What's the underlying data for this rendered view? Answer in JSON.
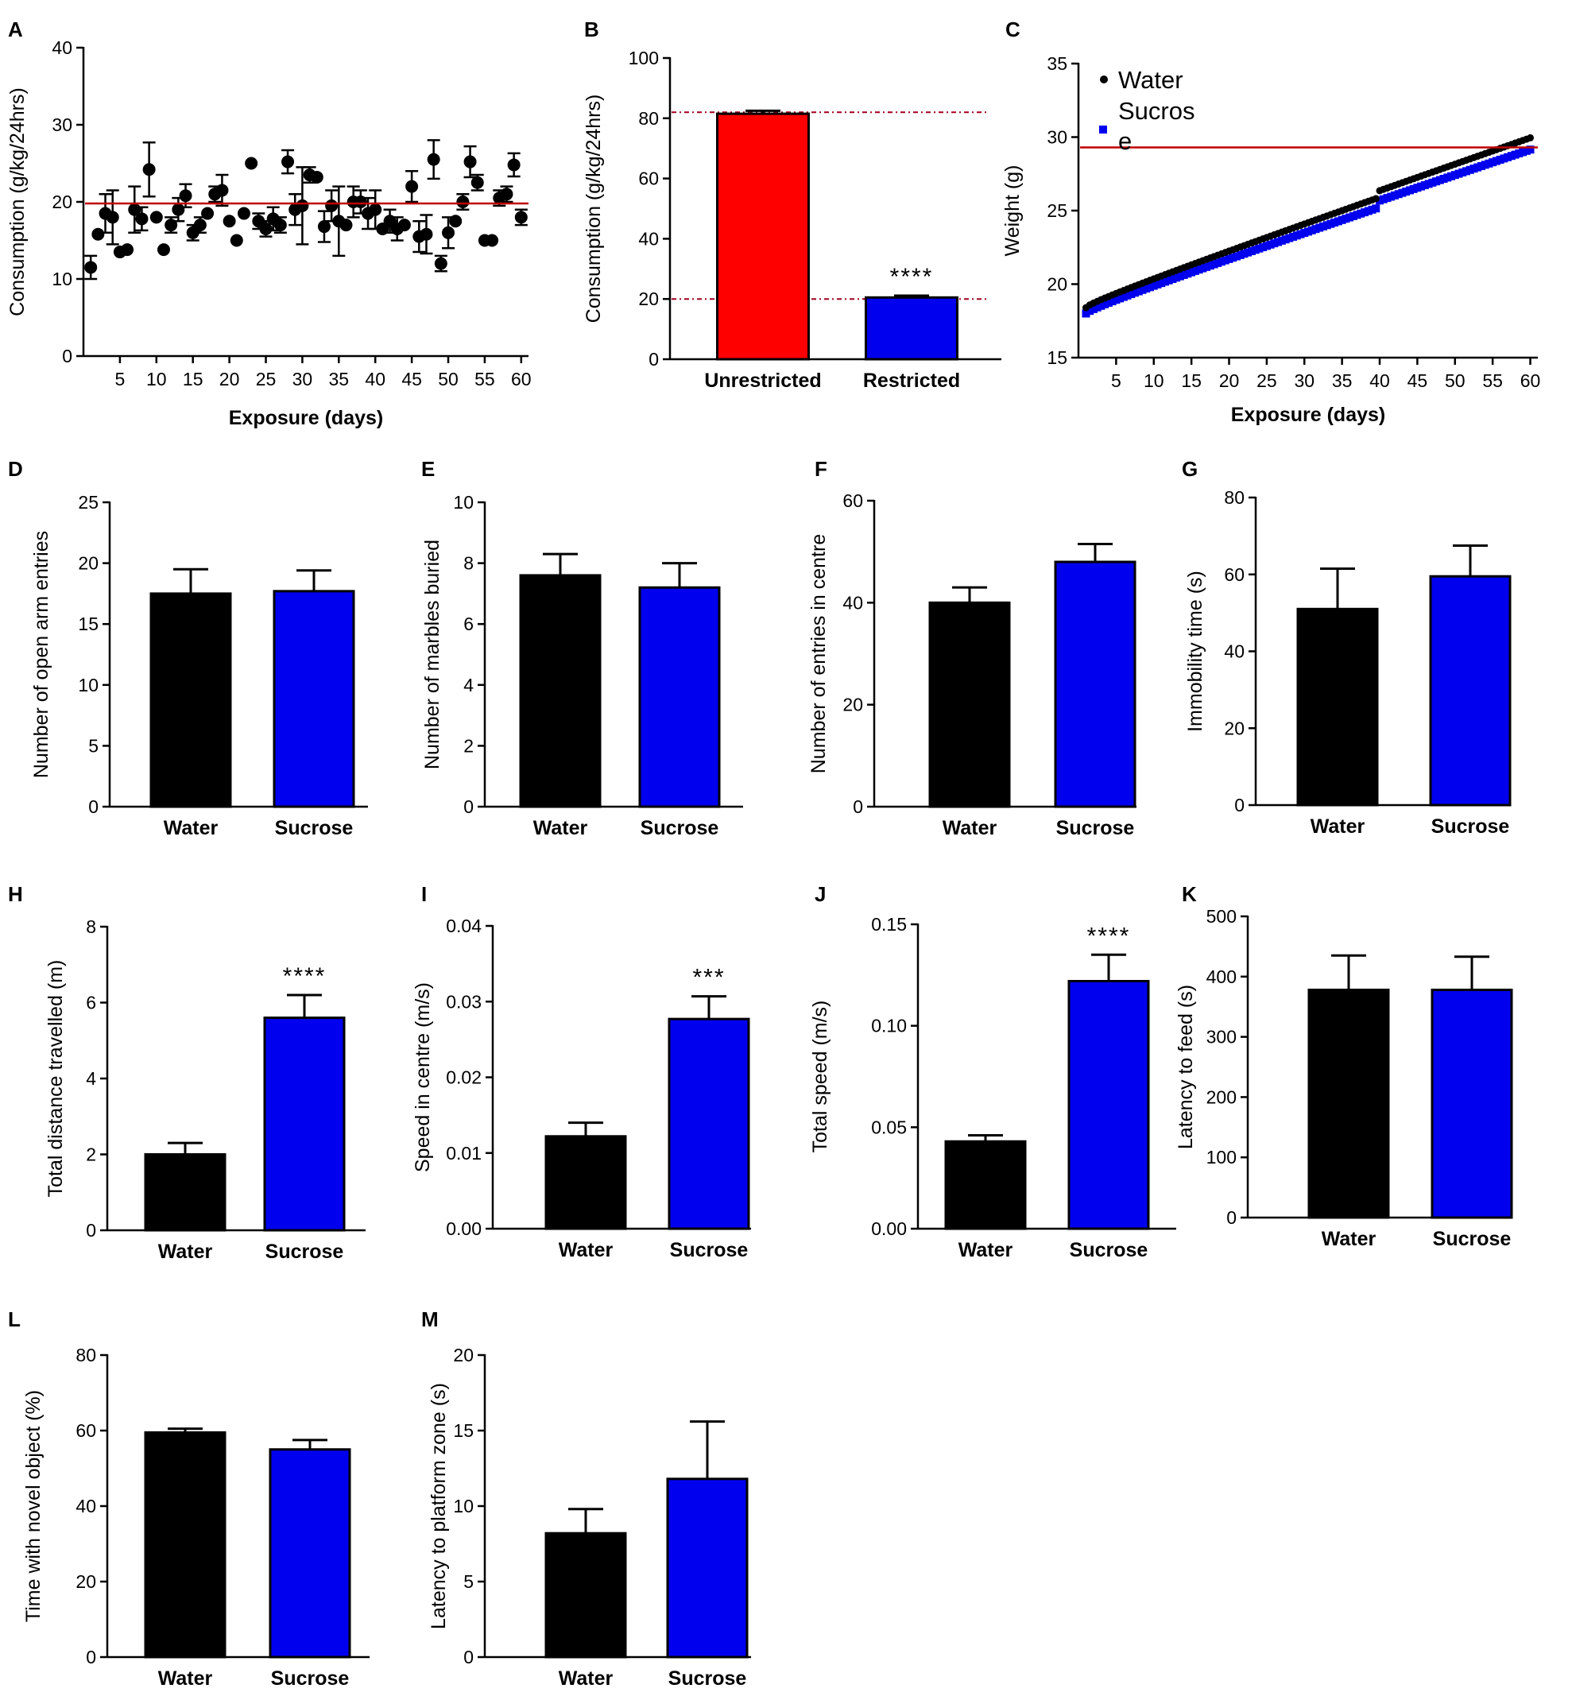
{
  "colors": {
    "water": "#000000",
    "sucrose": "#0000ee",
    "unrestricted": "#ff0000",
    "reference_line": "#c00000",
    "dash_line": "#a00020",
    "axis": "#000000"
  },
  "chart_data": [
    {
      "id": "A",
      "letter": "A",
      "type": "scatter",
      "xlabel": "Exposure (days)",
      "ylabel": "Consumption (g/kg/24hrs)",
      "xlim": [
        0,
        61
      ],
      "ylim": [
        0,
        40
      ],
      "xticks": [
        5,
        10,
        15,
        20,
        25,
        30,
        35,
        40,
        45,
        50,
        55,
        60
      ],
      "yticks": [
        0,
        10,
        20,
        30,
        40
      ],
      "reference_line": 19.8,
      "x": [
        1,
        2,
        3,
        4,
        5,
        6,
        7,
        8,
        9,
        10,
        11,
        12,
        13,
        14,
        15,
        16,
        17,
        18,
        19,
        20,
        21,
        22,
        23,
        24,
        25,
        26,
        27,
        28,
        29,
        30,
        31,
        32,
        33,
        34,
        35,
        36,
        37,
        38,
        39,
        40,
        41,
        42,
        43,
        44,
        45,
        46,
        47,
        48,
        49,
        50,
        51,
        52,
        53,
        54,
        55,
        56,
        57,
        58,
        59,
        60
      ],
      "y": [
        11.5,
        15.8,
        18.5,
        18.0,
        13.5,
        13.8,
        19.0,
        17.8,
        24.2,
        18.0,
        13.8,
        17.0,
        19.0,
        20.8,
        16.0,
        17.0,
        18.5,
        21.0,
        21.5,
        17.5,
        15.0,
        18.5,
        25.0,
        17.5,
        16.5,
        17.8,
        17.0,
        25.2,
        19.0,
        19.5,
        23.5,
        23.2,
        16.8,
        19.5,
        17.5,
        17.0,
        20.0,
        20.0,
        18.5,
        19.0,
        16.5,
        17.5,
        16.5,
        17.0,
        22.0,
        15.5,
        15.8,
        25.5,
        12.0,
        16.0,
        17.5,
        20.0,
        25.2,
        22.5,
        15.0,
        15.0,
        20.5,
        21.0,
        24.8,
        18.0
      ],
      "err": [
        1.5,
        0,
        2.5,
        3.5,
        0,
        0,
        3.0,
        1.5,
        3.5,
        0,
        0,
        1.0,
        1.5,
        1.5,
        1.0,
        1.0,
        0,
        1.0,
        2.0,
        0,
        0,
        0,
        0,
        1.0,
        1.0,
        1.5,
        1.0,
        1.5,
        2.0,
        5.0,
        1.0,
        0,
        2.0,
        2.0,
        4.5,
        0,
        2.0,
        1.5,
        2.0,
        2.5,
        0,
        1.5,
        1.5,
        0,
        2.0,
        2.0,
        2.5,
        2.5,
        1.0,
        2.0,
        0,
        1.0,
        2.0,
        1.0,
        0,
        0,
        1.0,
        1.0,
        1.5,
        1.0
      ]
    },
    {
      "id": "B",
      "letter": "B",
      "type": "bar",
      "xlabel": "",
      "ylabel": "Consumption (g/kg/24hrs)",
      "ylim": [
        0,
        100
      ],
      "yticks": [
        0,
        20,
        40,
        60,
        80,
        100
      ],
      "categories": [
        "Unrestricted",
        "Restricted"
      ],
      "values": [
        81.5,
        20.5
      ],
      "errors": [
        1.0,
        0.6
      ],
      "bar_colors": [
        "#ff0000",
        "#0000ee"
      ],
      "annotations": [
        "",
        "****"
      ],
      "dashed_lines": [
        82,
        20
      ]
    },
    {
      "id": "C",
      "letter": "C",
      "type": "scatter",
      "xlabel": "Exposure (days)",
      "ylabel": "Weight (g)",
      "xlim": [
        0,
        61
      ],
      "ylim": [
        15,
        35
      ],
      "xticks": [
        5,
        10,
        15,
        20,
        25,
        30,
        35,
        40,
        45,
        50,
        55,
        60
      ],
      "yticks": [
        15,
        20,
        25,
        30,
        35
      ],
      "reference_line": 29.3,
      "legend": [
        "Water",
        "Sucros",
        "e"
      ],
      "legend_position": "top-left",
      "series": [
        {
          "name": "Water",
          "y_start": 18.4,
          "y_end": 29.5
        },
        {
          "name": "Sucrose",
          "y_start": 18.0,
          "y_end": 28.7
        }
      ]
    },
    {
      "id": "D",
      "letter": "D",
      "type": "bar",
      "xlabel": "",
      "ylabel": "Number of open arm entries",
      "ylim": [
        0,
        25
      ],
      "yticks": [
        0,
        5,
        10,
        15,
        20,
        25
      ],
      "categories": [
        "Water",
        "Sucrose"
      ],
      "values": [
        17.5,
        17.7
      ],
      "errors": [
        2.0,
        1.7
      ],
      "bar_colors": [
        "#000000",
        "#0000ee"
      ],
      "annotations": [
        "",
        ""
      ]
    },
    {
      "id": "E",
      "letter": "E",
      "type": "bar",
      "xlabel": "",
      "ylabel": "Number of marbles buried",
      "ylim": [
        0,
        10
      ],
      "yticks": [
        0,
        2,
        4,
        6,
        8,
        10
      ],
      "categories": [
        "Water",
        "Sucrose"
      ],
      "values": [
        7.6,
        7.2
      ],
      "errors": [
        0.7,
        0.8
      ],
      "bar_colors": [
        "#000000",
        "#0000ee"
      ],
      "annotations": [
        "",
        ""
      ]
    },
    {
      "id": "F",
      "letter": "F",
      "type": "bar",
      "xlabel": "",
      "ylabel": "Number of entries in centre",
      "ylim": [
        0,
        60
      ],
      "yticks": [
        0,
        20,
        40,
        60
      ],
      "categories": [
        "Water",
        "Sucrose"
      ],
      "values": [
        40,
        48
      ],
      "errors": [
        3,
        3.5
      ],
      "bar_colors": [
        "#000000",
        "#0000ee"
      ],
      "annotations": [
        "",
        ""
      ]
    },
    {
      "id": "G",
      "letter": "G",
      "type": "bar",
      "xlabel": "",
      "ylabel": "Immobility time (s)",
      "ylim": [
        0,
        80
      ],
      "yticks": [
        0,
        20,
        40,
        60,
        80
      ],
      "categories": [
        "Water",
        "Sucrose"
      ],
      "values": [
        51,
        59.5
      ],
      "errors": [
        10.5,
        8
      ],
      "bar_colors": [
        "#000000",
        "#0000ee"
      ],
      "annotations": [
        "",
        ""
      ]
    },
    {
      "id": "H",
      "letter": "H",
      "type": "bar",
      "xlabel": "",
      "ylabel": "Total distance travelled (m)",
      "ylim": [
        0,
        8
      ],
      "yticks": [
        0,
        2,
        4,
        6,
        8
      ],
      "categories": [
        "Water",
        "Sucrose"
      ],
      "values": [
        2.0,
        5.6
      ],
      "errors": [
        0.3,
        0.6
      ],
      "bar_colors": [
        "#000000",
        "#0000ee"
      ],
      "annotations": [
        "",
        "****"
      ]
    },
    {
      "id": "I",
      "letter": "I",
      "type": "bar",
      "xlabel": "",
      "ylabel": "Speed in centre (m/s)",
      "ylim": [
        0,
        0.04
      ],
      "yticks": [
        "0.00",
        "0.01",
        "0.02",
        "0.03",
        "0.04"
      ],
      "categories": [
        "Water",
        "Sucrose"
      ],
      "values": [
        0.0122,
        0.0277
      ],
      "errors": [
        0.0018,
        0.003
      ],
      "bar_colors": [
        "#000000",
        "#0000ee"
      ],
      "annotations": [
        "",
        "***"
      ]
    },
    {
      "id": "J",
      "letter": "J",
      "type": "bar",
      "xlabel": "",
      "ylabel": "Total speed (m/s)",
      "ylim": [
        0,
        0.15
      ],
      "yticks": [
        "0.00",
        "0.05",
        "0.10",
        "0.15"
      ],
      "categories": [
        "Water",
        "Sucrose"
      ],
      "values": [
        0.043,
        0.122
      ],
      "errors": [
        0.003,
        0.013
      ],
      "bar_colors": [
        "#000000",
        "#0000ee"
      ],
      "annotations": [
        "",
        "****"
      ]
    },
    {
      "id": "K",
      "letter": "K",
      "type": "bar",
      "xlabel": "",
      "ylabel": "Latency to feed (s)",
      "ylim": [
        0,
        500
      ],
      "yticks": [
        0,
        100,
        200,
        300,
        400,
        500
      ],
      "categories": [
        "Water",
        "Sucrose"
      ],
      "values": [
        378,
        378
      ],
      "errors": [
        57,
        55
      ],
      "bar_colors": [
        "#000000",
        "#0000ee"
      ],
      "annotations": [
        "",
        ""
      ]
    },
    {
      "id": "L",
      "letter": "L",
      "type": "bar",
      "xlabel": "",
      "ylabel": "Time with novel object (%)",
      "ylim": [
        0,
        80
      ],
      "yticks": [
        0,
        20,
        40,
        60,
        80
      ],
      "categories": [
        "Water",
        "Sucrose"
      ],
      "values": [
        59.5,
        55
      ],
      "errors": [
        1,
        2.5
      ],
      "bar_colors": [
        "#000000",
        "#0000ee"
      ],
      "annotations": [
        "",
        ""
      ]
    },
    {
      "id": "M",
      "letter": "M",
      "type": "bar",
      "xlabel": "",
      "ylabel": "Latency to platform zone (s)",
      "ylim": [
        0,
        20
      ],
      "yticks": [
        0,
        5,
        10,
        15,
        20
      ],
      "categories": [
        "Water",
        "Sucrose"
      ],
      "values": [
        8.2,
        11.8
      ],
      "errors": [
        1.6,
        3.8
      ],
      "bar_colors": [
        "#000000",
        "#0000ee"
      ],
      "annotations": [
        "",
        ""
      ]
    }
  ]
}
